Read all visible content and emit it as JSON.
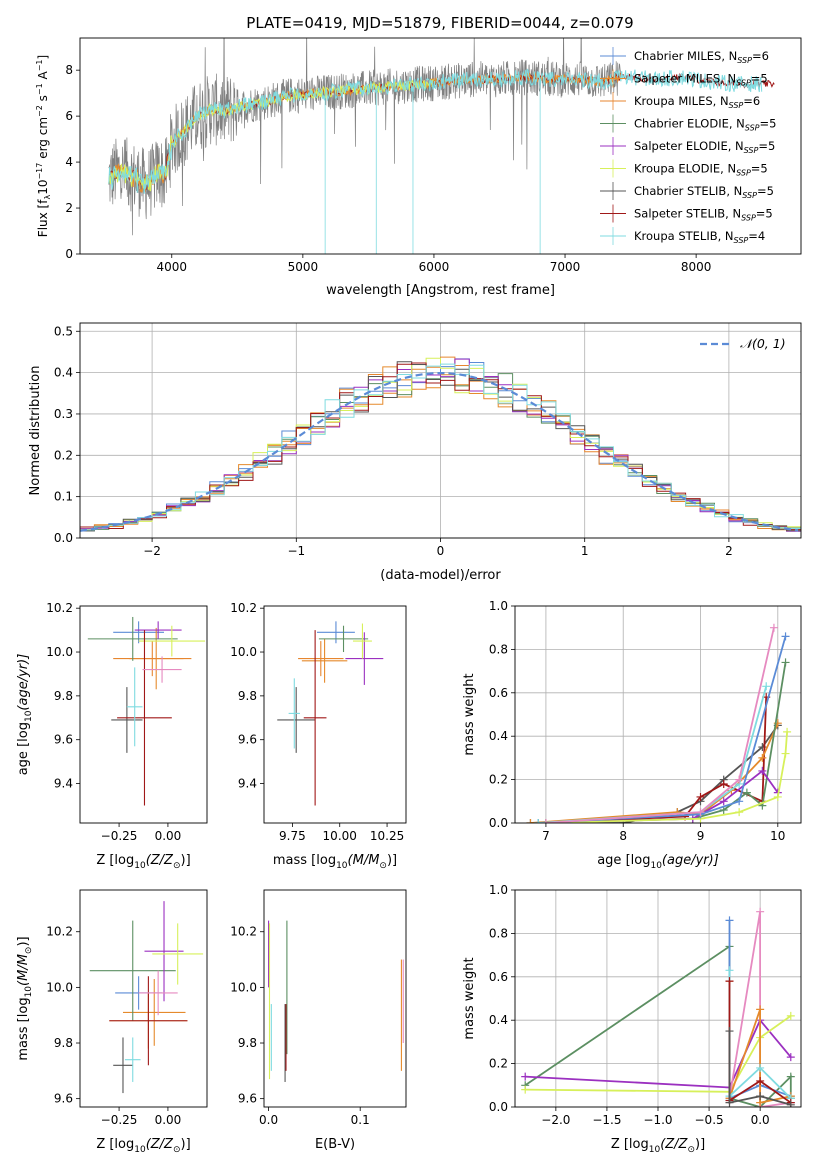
{
  "figure_title": "PLATE=0419, MJD=51879, FIBERID=0044, z=0.079",
  "colors": {
    "chabrier_miles": "#5b8bd6",
    "salpeter_miles": "#e58a2c",
    "kroupa_miles": "#e7862f",
    "chabrier_elodie": "#5c8f62",
    "salpeter_elodie": "#9b30c0",
    "kroupa_elodie": "#d7f05a",
    "chabrier_stelib": "#555555",
    "salpeter_stelib": "#a01818",
    "kroupa_stelib": "#7fdbe0",
    "data": "#808080",
    "pink": "#e68ac0",
    "normal": "#5b8bd6"
  },
  "chart_data": [
    {
      "id": "spectrum",
      "type": "line",
      "xlabel": "wavelength [Angstrom, rest frame]",
      "ylabel": "Flux [f",
      "ylabel_parts": [
        "Flux [f",
        "λ",
        "10",
        "−17",
        " erg cm",
        "−2",
        " s",
        "−1",
        " A",
        "−1",
        "]"
      ],
      "xlim": [
        3300,
        8800
      ],
      "ylim": [
        0,
        9.4
      ],
      "xticks": [
        4000,
        5000,
        6000,
        7000,
        8000
      ],
      "yticks": [
        0,
        2,
        4,
        6,
        8
      ],
      "legend_position": "upper-right",
      "legend": [
        {
          "name": "Chabrier MILES, N",
          "sub": "SSP",
          "val": "=6",
          "color": "#5b8bd6"
        },
        {
          "name": "Salpeter MILES, N",
          "sub": "SSP",
          "val": "=5",
          "color": "#e58a2c"
        },
        {
          "name": "Kroupa MILES, N",
          "sub": "SSP",
          "val": "=6",
          "color": "#e7862f"
        },
        {
          "name": "Chabrier ELODIE, N",
          "sub": "SSP",
          "val": "=5",
          "color": "#5c8f62"
        },
        {
          "name": "Salpeter ELODIE, N",
          "sub": "SSP",
          "val": "=5",
          "color": "#9b30c0"
        },
        {
          "name": "Kroupa ELODIE, N",
          "sub": "SSP",
          "val": "=5",
          "color": "#d7f05a"
        },
        {
          "name": "Chabrier STELIB, N",
          "sub": "SSP",
          "val": "=5",
          "color": "#555555"
        },
        {
          "name": "Salpeter STELIB, N",
          "sub": "SSP",
          "val": "=5",
          "color": "#a01818"
        },
        {
          "name": "Kroupa STELIB, N",
          "sub": "SSP",
          "val": "=4",
          "color": "#7fdbe0"
        }
      ],
      "continuum": {
        "x": [
          3520,
          3600,
          3700,
          3800,
          3850,
          3900,
          3950,
          4000,
          4100,
          4200,
          4300,
          4400,
          4500,
          4700,
          4900,
          5100,
          5300,
          5500,
          5700,
          5900,
          6100,
          6300,
          6500,
          6700,
          6900,
          7100,
          7300,
          7420,
          7500,
          7700,
          7900,
          8100,
          8300,
          8500
        ],
        "y": [
          3.3,
          3.6,
          3.4,
          3.0,
          3.2,
          3.6,
          3.4,
          4.8,
          5.4,
          6.0,
          6.3,
          6.2,
          6.4,
          6.6,
          6.9,
          7.0,
          7.1,
          7.2,
          7.3,
          7.4,
          7.5,
          7.6,
          7.6,
          7.7,
          7.6,
          7.6,
          7.5,
          7.7,
          7.7,
          7.6,
          7.7,
          7.5,
          7.4,
          7.4
        ]
      }
    },
    {
      "id": "residuals",
      "type": "histogram",
      "xlabel": "(data-model)/error",
      "ylabel": "Normed distribution",
      "xlim": [
        -2.5,
        2.5
      ],
      "ylim": [
        0,
        0.52
      ],
      "xticks": [
        -2,
        -1,
        0,
        1,
        2
      ],
      "yticks": [
        0.0,
        0.1,
        0.2,
        0.3,
        0.4,
        0.5
      ],
      "grid": true,
      "legend_position": "upper-right",
      "legend": [
        {
          "name": "𝒩(0, 1)",
          "color": "#5b8bd6",
          "style": "dashed"
        }
      ],
      "bin_width": 0.1,
      "model_colors": [
        "#5b8bd6",
        "#e58a2c",
        "#e7862f",
        "#5c8f62",
        "#9b30c0",
        "#d7f05a",
        "#555555",
        "#a01818",
        "#7fdbe0"
      ]
    },
    {
      "id": "age_vs_Z",
      "type": "errorbar",
      "xlabel": "Z [log",
      "xlabel_parts": [
        "Z [log",
        "10",
        "(Z/Z",
        "⊙",
        ")]"
      ],
      "ylabel_parts": [
        "age  [log",
        "10",
        "(age/yr)]"
      ],
      "xlim": [
        -0.45,
        0.2
      ],
      "ylim": [
        9.22,
        10.21
      ],
      "xticks": [
        -0.25,
        0.0
      ],
      "yticks": [
        9.4,
        9.6,
        9.8,
        10.0,
        10.2
      ],
      "points": [
        {
          "x": -0.15,
          "y": 10.09,
          "xerr": 0.13,
          "yerr": 0.05,
          "color": "#5b8bd6"
        },
        {
          "x": -0.06,
          "y": 9.97,
          "xerr": 0.14,
          "yerr": 0.14,
          "color": "#e58a2c"
        },
        {
          "x": -0.08,
          "y": 9.97,
          "xerr": 0.2,
          "yerr": 0.08,
          "color": "#e7862f"
        },
        {
          "x": -0.18,
          "y": 10.06,
          "xerr": 0.23,
          "yerr": 0.1,
          "color": "#5c8f62"
        },
        {
          "x": -0.05,
          "y": 10.1,
          "xerr": 0.12,
          "yerr": 0.04,
          "color": "#9b30c0"
        },
        {
          "x": 0.02,
          "y": 10.05,
          "xerr": 0.17,
          "yerr": 0.07,
          "color": "#d7f05a"
        },
        {
          "x": -0.21,
          "y": 9.69,
          "xerr": 0.08,
          "yerr": 0.15,
          "color": "#555555"
        },
        {
          "x": -0.12,
          "y": 9.7,
          "xerr": 0.14,
          "yerr": 0.4,
          "color": "#a01818"
        },
        {
          "x": -0.17,
          "y": 9.75,
          "xerr": 0.04,
          "yerr": 0.18,
          "color": "#7fdbe0"
        },
        {
          "x": -0.03,
          "y": 9.92,
          "xerr": 0.1,
          "yerr": 0.06,
          "color": "#e68ac0"
        }
      ]
    },
    {
      "id": "age_vs_mass",
      "type": "errorbar",
      "xlabel_parts": [
        "mass [log",
        "10",
        "(M/M",
        "⊙",
        ")]"
      ],
      "xlim": [
        9.6,
        10.35
      ],
      "ylim": [
        9.22,
        10.21
      ],
      "xticks": [
        9.75,
        10.0,
        10.25
      ],
      "yticks": [
        9.4,
        9.6,
        9.8,
        10.0,
        10.2
      ],
      "points": [
        {
          "x": 9.98,
          "y": 10.09,
          "xerr": 0.1,
          "yerr": 0.05,
          "color": "#5b8bd6"
        },
        {
          "x": 9.92,
          "y": 9.96,
          "xerr": 0.12,
          "yerr": 0.1,
          "color": "#e58a2c"
        },
        {
          "x": 9.9,
          "y": 9.97,
          "xerr": 0.12,
          "yerr": 0.08,
          "color": "#e7862f"
        },
        {
          "x": 10.02,
          "y": 10.06,
          "xerr": 0.13,
          "yerr": 0.06,
          "color": "#5c8f62"
        },
        {
          "x": 10.13,
          "y": 9.97,
          "xerr": 0.1,
          "yerr": 0.12,
          "color": "#9b30c0"
        },
        {
          "x": 10.12,
          "y": 10.05,
          "xerr": 0.05,
          "yerr": 0.08,
          "color": "#d7f05a"
        },
        {
          "x": 9.77,
          "y": 9.69,
          "xerr": 0.1,
          "yerr": 0.15,
          "color": "#555555"
        },
        {
          "x": 9.87,
          "y": 9.7,
          "xerr": 0.06,
          "yerr": 0.4,
          "color": "#a01818"
        },
        {
          "x": 9.76,
          "y": 9.72,
          "xerr": 0.03,
          "yerr": 0.16,
          "color": "#7fdbe0"
        }
      ]
    },
    {
      "id": "massweight_vs_age",
      "type": "line",
      "xlabel_parts": [
        "age  [log",
        "10",
        "(age/yr)]"
      ],
      "ylabel": "mass weight",
      "xlim": [
        6.6,
        10.3
      ],
      "ylim": [
        0,
        1.0
      ],
      "xticks": [
        7,
        8,
        9,
        10
      ],
      "yticks": [
        0.0,
        0.2,
        0.4,
        0.6,
        0.8,
        1.0
      ],
      "grid": true,
      "series": [
        {
          "color": "#555555",
          "x": [
            6.8,
            8.0,
            8.7,
            9.0,
            9.3,
            9.8,
            10.0
          ],
          "y": [
            0.0,
            0.0,
            0.05,
            0.1,
            0.2,
            0.35,
            0.45
          ]
        },
        {
          "color": "#a01818",
          "x": [
            6.9,
            8.8,
            9.0,
            9.3,
            9.8,
            9.85
          ],
          "y": [
            0.0,
            0.03,
            0.12,
            0.18,
            0.1,
            0.58
          ]
        },
        {
          "color": "#e58a2c",
          "x": [
            6.8,
            8.7,
            9.0,
            9.4,
            9.8,
            10.0
          ],
          "y": [
            0.0,
            0.05,
            0.04,
            0.15,
            0.3,
            0.46
          ]
        },
        {
          "color": "#5c8f62",
          "x": [
            7.0,
            8.9,
            9.3,
            9.6,
            9.8,
            10.1
          ],
          "y": [
            0.0,
            0.02,
            0.06,
            0.14,
            0.08,
            0.74
          ]
        },
        {
          "color": "#9b30c0",
          "x": [
            7.0,
            8.9,
            9.3,
            9.8,
            10.0
          ],
          "y": [
            0.0,
            0.02,
            0.1,
            0.24,
            0.14
          ]
        },
        {
          "color": "#d7f05a",
          "x": [
            7.0,
            9.0,
            9.5,
            10.0,
            10.1,
            10.12
          ],
          "y": [
            0.0,
            0.02,
            0.05,
            0.12,
            0.32,
            0.42
          ]
        },
        {
          "color": "#5b8bd6",
          "x": [
            6.9,
            9.0,
            9.5,
            10.1
          ],
          "y": [
            0.0,
            0.04,
            0.1,
            0.86
          ]
        },
        {
          "color": "#7fdbe0",
          "x": [
            6.9,
            9.0,
            9.5,
            9.85
          ],
          "y": [
            0.0,
            0.05,
            0.18,
            0.63
          ]
        },
        {
          "color": "#e68ac0",
          "x": [
            7.0,
            9.0,
            9.5,
            9.95
          ],
          "y": [
            0.0,
            0.05,
            0.2,
            0.9
          ]
        }
      ]
    },
    {
      "id": "mass_vs_Z",
      "type": "errorbar",
      "xlabel_parts": [
        "Z [log",
        "10",
        "(Z/Z",
        "⊙",
        ")]"
      ],
      "ylabel_parts": [
        "mass [log",
        "10",
        "(M/M",
        "⊙",
        ")]"
      ],
      "xlim": [
        -0.45,
        0.2
      ],
      "ylim": [
        9.57,
        10.35
      ],
      "xticks": [
        -0.25,
        0.0
      ],
      "yticks": [
        9.6,
        9.8,
        10.0,
        10.2
      ],
      "points": [
        {
          "x": -0.15,
          "y": 9.98,
          "xerr": 0.12,
          "yerr": 0.06,
          "color": "#5b8bd6"
        },
        {
          "x": -0.07,
          "y": 9.91,
          "xerr": 0.16,
          "yerr": 0.12,
          "color": "#e58a2c"
        },
        {
          "x": -0.1,
          "y": 9.88,
          "xerr": 0.2,
          "yerr": 0.1,
          "color": "#e7862f"
        },
        {
          "x": -0.18,
          "y": 10.06,
          "xerr": 0.22,
          "yerr": 0.18,
          "color": "#5c8f62"
        },
        {
          "x": -0.02,
          "y": 10.13,
          "xerr": 0.1,
          "yerr": 0.18,
          "color": "#9b30c0"
        },
        {
          "x": 0.05,
          "y": 10.12,
          "xerr": 0.13,
          "yerr": 0.11,
          "color": "#d7f05a"
        },
        {
          "x": -0.23,
          "y": 9.72,
          "xerr": 0.05,
          "yerr": 0.1,
          "color": "#555555"
        },
        {
          "x": -0.1,
          "y": 9.88,
          "xerr": 0.2,
          "yerr": 0.16,
          "color": "#a01818"
        },
        {
          "x": -0.18,
          "y": 9.74,
          "xerr": 0.04,
          "yerr": 0.08,
          "color": "#7fdbe0"
        },
        {
          "x": -0.05,
          "y": 9.98,
          "xerr": 0.1,
          "yerr": 0.08,
          "color": "#e68ac0"
        }
      ]
    },
    {
      "id": "mass_vs_EBV",
      "type": "errorbar",
      "xlabel": "E(B-V)",
      "xlim": [
        -0.005,
        0.15
      ],
      "ylim": [
        9.57,
        10.35
      ],
      "xticks": [
        0.0,
        0.1
      ],
      "yticks": [
        9.6,
        9.8,
        10.0,
        10.2
      ],
      "points": [
        {
          "x": 0.0,
          "y": 10.12,
          "yerr": 0.12,
          "color": "#9b30c0"
        },
        {
          "x": 0.001,
          "y": 9.95,
          "yerr": 0.28,
          "color": "#d7f05a"
        },
        {
          "x": 0.003,
          "y": 9.82,
          "yerr": 0.12,
          "color": "#7fdbe0"
        },
        {
          "x": 0.02,
          "y": 10.0,
          "yerr": 0.24,
          "color": "#5c8f62"
        },
        {
          "x": 0.018,
          "y": 9.8,
          "yerr": 0.14,
          "color": "#555555"
        },
        {
          "x": 0.019,
          "y": 9.82,
          "yerr": 0.12,
          "color": "#a01818"
        },
        {
          "x": 0.145,
          "y": 9.9,
          "yerr": 0.2,
          "color": "#e58a2c"
        },
        {
          "x": 0.147,
          "y": 9.95,
          "yerr": 0.15,
          "color": "#e68ac0"
        }
      ]
    },
    {
      "id": "massweight_vs_Z",
      "type": "line",
      "xlabel_parts": [
        "Z [log",
        "10",
        "(Z/Z",
        "⊙",
        ")]"
      ],
      "ylabel": "mass weight",
      "xlim": [
        -2.4,
        0.4
      ],
      "ylim": [
        0,
        1.0
      ],
      "xticks": [
        -2.0,
        -1.5,
        -1.0,
        -0.5,
        0.0
      ],
      "yticks": [
        0.0,
        0.2,
        0.4,
        0.6,
        0.8,
        1.0
      ],
      "grid": true,
      "series": [
        {
          "color": "#5c8f62",
          "x": [
            -2.3,
            -0.3,
            -0.3,
            0.0,
            0.3,
            0.3
          ],
          "y": [
            0.1,
            0.74,
            0.04,
            0.0,
            0.14,
            0.04
          ]
        },
        {
          "color": "#9b30c0",
          "x": [
            -2.3,
            -0.3,
            0.0,
            0.3
          ],
          "y": [
            0.14,
            0.09,
            0.4,
            0.23
          ]
        },
        {
          "color": "#d7f05a",
          "x": [
            -2.3,
            -0.3,
            0.0,
            0.3
          ],
          "y": [
            0.08,
            0.07,
            0.32,
            0.42
          ]
        },
        {
          "color": "#5b8bd6",
          "x": [
            -0.3,
            -0.3,
            0.0,
            0.3
          ],
          "y": [
            0.86,
            0.04,
            0.1,
            0.05
          ]
        },
        {
          "color": "#e68ac0",
          "x": [
            -0.3,
            0.0,
            0.0,
            0.3
          ],
          "y": [
            0.04,
            0.9,
            0.0,
            0.02
          ]
        },
        {
          "color": "#e58a2c",
          "x": [
            -0.3,
            -0.3,
            0.0,
            0.0,
            0.3
          ],
          "y": [
            0.58,
            0.04,
            0.45,
            0.02,
            0.05
          ]
        },
        {
          "color": "#7fdbe0",
          "x": [
            -0.3,
            -0.3,
            0.0,
            0.3
          ],
          "y": [
            0.63,
            0.05,
            0.18,
            0.04
          ]
        },
        {
          "color": "#a01818",
          "x": [
            -0.3,
            -0.3,
            0.0,
            0.3
          ],
          "y": [
            0.58,
            0.03,
            0.12,
            0.02
          ]
        },
        {
          "color": "#555555",
          "x": [
            -0.3,
            -0.3,
            0.0,
            0.3
          ],
          "y": [
            0.35,
            0.02,
            0.05,
            0.01
          ]
        }
      ]
    }
  ]
}
